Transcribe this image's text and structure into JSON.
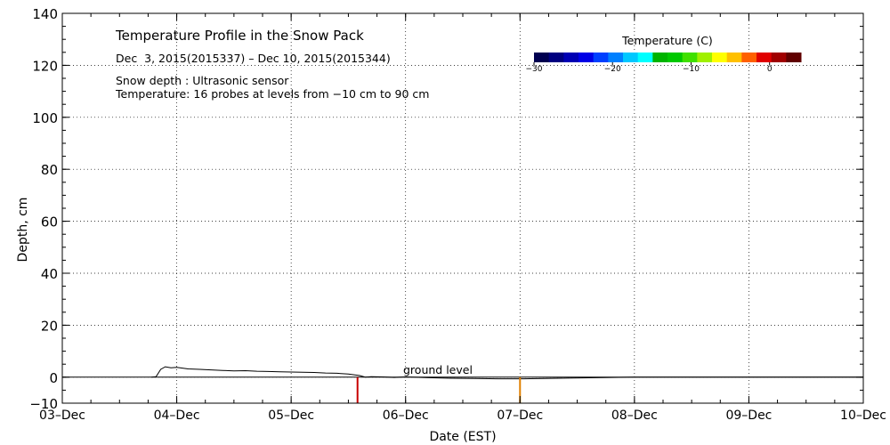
{
  "chart_data": {
    "type": "line",
    "title": "Temperature Profile in the Snow Pack",
    "subtitle": "Dec  3, 2015(2015337) – Dec 10, 2015(2015344)",
    "notes": [
      "Snow depth : Ultrasonic sensor",
      "Temperature: 16 probes at levels from −10 cm to 90 cm"
    ],
    "xlabel": "Date (EST)",
    "ylabel": "Depth, cm",
    "x_ticks": [
      "03–Dec",
      "04–Dec",
      "05–Dec",
      "06–Dec",
      "07–Dec",
      "08–Dec",
      "09–Dec",
      "10–Dec"
    ],
    "xlim": [
      0,
      7
    ],
    "y_ticks": [
      "−10",
      "0",
      "20",
      "40",
      "60",
      "80",
      "100",
      "120",
      "140"
    ],
    "ylim": [
      -10,
      140
    ],
    "grid": true,
    "annotation": "ground level",
    "series": [
      {
        "name": "",
        "x": [
          0.78,
          0.82,
          0.86,
          0.9,
          0.95,
          1.0,
          1.1,
          1.2,
          1.3,
          1.4,
          1.5,
          1.6,
          1.7,
          1.8,
          1.9,
          2.0,
          2.1,
          2.2,
          2.3,
          2.4,
          2.5,
          2.6,
          2.65,
          2.7,
          2.8,
          2.9,
          3.0,
          3.2,
          3.4,
          3.6,
          3.8,
          4.0,
          4.03,
          5.0,
          6.0,
          7.0
        ],
        "y": [
          0,
          0.2,
          3,
          4,
          3.6,
          3.8,
          3.2,
          3.0,
          2.8,
          2.6,
          2.4,
          2.5,
          2.3,
          2.2,
          2.1,
          2.0,
          1.9,
          1.8,
          1.6,
          1.5,
          1.2,
          0.6,
          0,
          0.2,
          0.1,
          -0.1,
          0.1,
          -0.2,
          -0.4,
          -0.5,
          -0.6,
          -0.6,
          -0.6,
          0,
          0,
          0
        ]
      }
    ],
    "temperature_markers": [
      {
        "date": 2.58,
        "color": "#c80000"
      },
      {
        "date": 4.0,
        "color": "#e08000"
      }
    ],
    "colorbar": {
      "title": "Temperature (C)",
      "ticks": [
        "−30",
        "−20",
        "−10",
        "0"
      ],
      "colors": [
        "#000050",
        "#000080",
        "#0000b4",
        "#0000e6",
        "#0040ff",
        "#0080ff",
        "#00c8ff",
        "#00ffff",
        "#00b400",
        "#00c800",
        "#40e000",
        "#a0f000",
        "#ffff00",
        "#ffc000",
        "#ff6000",
        "#e00000",
        "#a00000",
        "#600000"
      ]
    }
  }
}
